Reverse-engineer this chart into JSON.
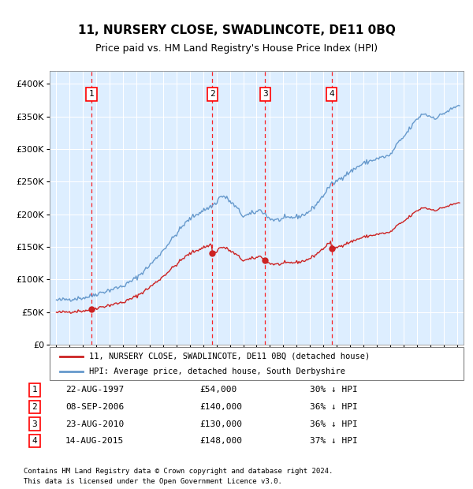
{
  "title": "11, NURSERY CLOSE, SWADLINCOTE, DE11 0BQ",
  "subtitle": "Price paid vs. HM Land Registry's House Price Index (HPI)",
  "legend_line1": "11, NURSERY CLOSE, SWADLINCOTE, DE11 0BQ (detached house)",
  "legend_line2": "HPI: Average price, detached house, South Derbyshire",
  "footer1": "Contains HM Land Registry data © Crown copyright and database right 2024.",
  "footer2": "This data is licensed under the Open Government Licence v3.0.",
  "transactions": [
    {
      "label": "1",
      "date_str": "22-AUG-1997",
      "date_x": 1997.64,
      "price": 54000,
      "pct": "30% ↓ HPI"
    },
    {
      "label": "2",
      "date_str": "08-SEP-2006",
      "date_x": 2006.69,
      "price": 140000,
      "pct": "36% ↓ HPI"
    },
    {
      "label": "3",
      "date_str": "23-AUG-2010",
      "date_x": 2010.64,
      "price": 130000,
      "pct": "36% ↓ HPI"
    },
    {
      "label": "4",
      "date_str": "14-AUG-2015",
      "date_x": 2015.62,
      "price": 148000,
      "pct": "37% ↓ HPI"
    }
  ],
  "hpi_color": "#6699cc",
  "price_color": "#cc2222",
  "bg_color": "#ddeeff",
  "grid_color": "#ffffff",
  "ylim": [
    0,
    420000
  ],
  "xlim": [
    1994.5,
    2025.5
  ],
  "yticks": [
    0,
    50000,
    100000,
    150000,
    200000,
    250000,
    300000,
    350000,
    400000
  ],
  "xticks": [
    1995,
    1996,
    1997,
    1998,
    1999,
    2000,
    2001,
    2002,
    2003,
    2004,
    2005,
    2006,
    2007,
    2008,
    2009,
    2010,
    2011,
    2012,
    2013,
    2014,
    2015,
    2016,
    2017,
    2018,
    2019,
    2020,
    2021,
    2022,
    2023,
    2024,
    2025
  ],
  "hpi_anchors_x": [
    1995.0,
    1995.5,
    1996.0,
    1996.5,
    1997.0,
    1997.5,
    1998.0,
    1998.5,
    1999.0,
    1999.5,
    2000.0,
    2000.5,
    2001.0,
    2001.5,
    2002.0,
    2002.5,
    2003.0,
    2003.5,
    2004.0,
    2004.5,
    2005.0,
    2005.5,
    2006.0,
    2006.5,
    2007.0,
    2007.2,
    2007.5,
    2007.8,
    2008.0,
    2008.5,
    2009.0,
    2009.5,
    2010.0,
    2010.3,
    2010.5,
    2011.0,
    2011.5,
    2012.0,
    2012.5,
    2013.0,
    2013.5,
    2014.0,
    2014.5,
    2015.0,
    2015.5,
    2016.0,
    2016.5,
    2017.0,
    2017.5,
    2018.0,
    2018.5,
    2019.0,
    2019.5,
    2020.0,
    2020.5,
    2021.0,
    2021.5,
    2022.0,
    2022.5,
    2023.0,
    2023.5,
    2024.0,
    2024.5,
    2025.2
  ],
  "hpi_anchors_y": [
    68000,
    69000,
    70000,
    71000,
    72000,
    74000,
    78000,
    81000,
    84000,
    87000,
    90000,
    96000,
    103000,
    112000,
    122000,
    133000,
    145000,
    158000,
    170000,
    183000,
    193000,
    200000,
    206000,
    211000,
    218000,
    226000,
    228000,
    224000,
    220000,
    210000,
    197000,
    200000,
    204000,
    207000,
    203000,
    193000,
    191000,
    193000,
    195000,
    196000,
    199000,
    205000,
    216000,
    229000,
    244000,
    251000,
    259000,
    265000,
    272000,
    278000,
    282000,
    285000,
    288000,
    290000,
    307000,
    318000,
    332000,
    346000,
    355000,
    350000,
    348000,
    355000,
    360000,
    368000
  ]
}
